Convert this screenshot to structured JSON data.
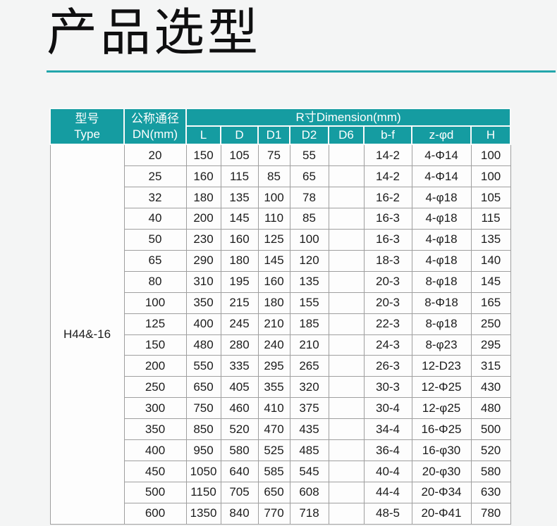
{
  "page": {
    "title": "产品选型",
    "accent_color": "#159ca1",
    "underline_color": "#23a6ab",
    "background_color": "#f4f5f5"
  },
  "table": {
    "model": "H44&-16",
    "header": {
      "type_line1": "型号",
      "type_line2": "Type",
      "dn_line1": "公称通径",
      "dn_line2": "DN(mm)",
      "dimension_group": "R寸Dimension(mm)",
      "sub_columns": [
        "L",
        "D",
        "D1",
        "D2",
        "D6",
        "b-f",
        "z-φd",
        "H"
      ]
    },
    "rows": [
      [
        "20",
        "150",
        "105",
        "75",
        "55",
        "",
        "14-2",
        "4-Φ14",
        "100"
      ],
      [
        "25",
        "160",
        "115",
        "85",
        "65",
        "",
        "14-2",
        "4-Φ14",
        "100"
      ],
      [
        "32",
        "180",
        "135",
        "100",
        "78",
        "",
        "16-2",
        "4-φ18",
        "105"
      ],
      [
        "40",
        "200",
        "145",
        "110",
        "85",
        "",
        "16-3",
        "4-φ18",
        "115"
      ],
      [
        "50",
        "230",
        "160",
        "125",
        "100",
        "",
        "16-3",
        "4-φ18",
        "135"
      ],
      [
        "65",
        "290",
        "180",
        "145",
        "120",
        "",
        "18-3",
        "4-φ18",
        "140"
      ],
      [
        "80",
        "310",
        "195",
        "160",
        "135",
        "",
        "20-3",
        "8-φ18",
        "145"
      ],
      [
        "100",
        "350",
        "215",
        "180",
        "155",
        "",
        "20-3",
        "8-Φ18",
        "165"
      ],
      [
        "125",
        "400",
        "245",
        "210",
        "185",
        "",
        "22-3",
        "8-φ18",
        "250"
      ],
      [
        "150",
        "480",
        "280",
        "240",
        "210",
        "",
        "24-3",
        "8-φ23",
        "295"
      ],
      [
        "200",
        "550",
        "335",
        "295",
        "265",
        "",
        "26-3",
        "12-D23",
        "315"
      ],
      [
        "250",
        "650",
        "405",
        "355",
        "320",
        "",
        "30-3",
        "12-Φ25",
        "430"
      ],
      [
        "300",
        "750",
        "460",
        "410",
        "375",
        "",
        "30-4",
        "12-φ25",
        "480"
      ],
      [
        "350",
        "850",
        "520",
        "470",
        "435",
        "",
        "34-4",
        "16-Φ25",
        "500"
      ],
      [
        "400",
        "950",
        "580",
        "525",
        "485",
        "",
        "36-4",
        "16-φ30",
        "520"
      ],
      [
        "450",
        "1050",
        "640",
        "585",
        "545",
        "",
        "40-4",
        "20-φ30",
        "580"
      ],
      [
        "500",
        "1150",
        "705",
        "650",
        "608",
        "",
        "44-4",
        "20-Φ34",
        "630"
      ],
      [
        "600",
        "1350",
        "840",
        "770",
        "718",
        "",
        "48-5",
        "20-Φ41",
        "780"
      ]
    ]
  }
}
